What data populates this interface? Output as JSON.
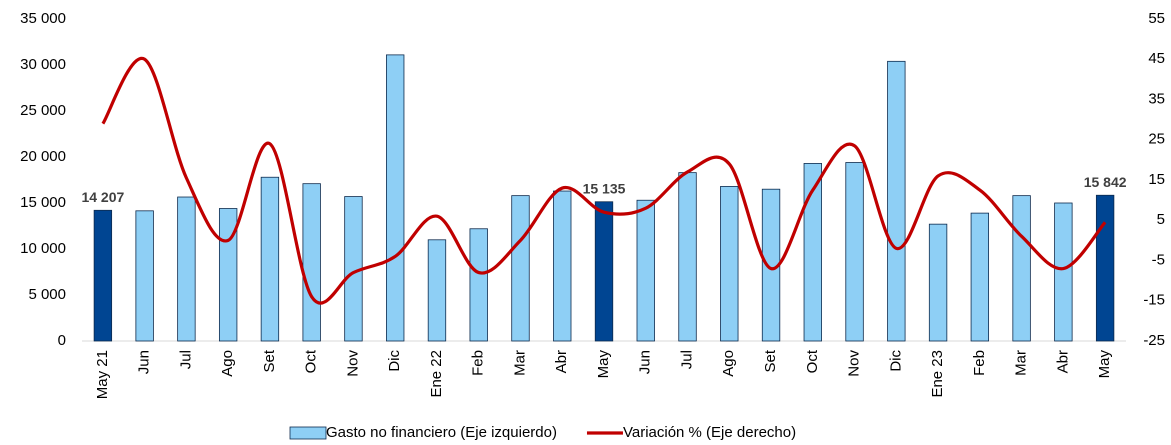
{
  "chart_data": {
    "type": "bar_line",
    "categories": [
      "May 21",
      "Jun",
      "Jul",
      "Ago",
      "Set",
      "Oct",
      "Nov",
      "Dic",
      "Ene 22",
      "Feb",
      "Mar",
      "Abr",
      "May",
      "Jun",
      "Jul",
      "Ago",
      "Set",
      "Oct",
      "Nov",
      "Dic",
      "Ene 23",
      "Feb",
      "Mar",
      "Abr",
      "May"
    ],
    "series": [
      {
        "name": "Gasto no financiero (Eje izquierdo)",
        "type": "bar",
        "color": "#8ecff5",
        "edge_color": "#0d2a4d",
        "colors": [
          "#004592",
          "#8ecff5",
          "#8ecff5",
          "#8ecff5",
          "#8ecff5",
          "#8ecff5",
          "#8ecff5",
          "#8ecff5",
          "#8ecff5",
          "#8ecff5",
          "#8ecff5",
          "#8ecff5",
          "#004592",
          "#8ecff5",
          "#8ecff5",
          "#8ecff5",
          "#8ecff5",
          "#8ecff5",
          "#8ecff5",
          "#8ecff5",
          "#8ecff5",
          "#8ecff5",
          "#8ecff5",
          "#8ecff5",
          "#004592"
        ],
        "values": [
          14207,
          14150,
          15650,
          14400,
          17800,
          17100,
          15700,
          31100,
          11000,
          12200,
          15800,
          16300,
          15135,
          15300,
          18300,
          16800,
          16500,
          19300,
          19400,
          30400,
          12700,
          13900,
          15800,
          15000,
          15842
        ],
        "value_labels": [
          "14 207",
          null,
          null,
          null,
          null,
          null,
          null,
          null,
          null,
          null,
          null,
          null,
          "15 135",
          null,
          null,
          null,
          null,
          null,
          null,
          null,
          null,
          null,
          null,
          null,
          "15 842"
        ]
      },
      {
        "name": "Variación % (Eje derecho)",
        "type": "line",
        "axis": "y2",
        "color": "#c00000",
        "values": [
          29,
          45,
          15.5,
          0,
          24,
          -14,
          -8,
          -4,
          6,
          -8,
          0,
          13,
          7,
          8,
          17,
          19,
          -7,
          12.5,
          23.5,
          -2,
          16,
          12.5,
          1,
          -7,
          4.5
        ]
      }
    ],
    "ylim": [
      0,
      35000
    ],
    "yticks": [
      0,
      {
        "value": 5000,
        "label": "5 000"
      },
      {
        "value": 10000,
        "label": "10 000"
      },
      {
        "value": 15000,
        "label": "15 000"
      },
      {
        "value": 20000,
        "label": "20 000"
      },
      {
        "value": 25000,
        "label": "25 000"
      },
      {
        "value": 30000,
        "label": "30 000"
      },
      {
        "value": 35000,
        "label": "35 000"
      }
    ],
    "y2lim": [
      -25,
      55
    ],
    "y2ticks": [
      -25,
      -15,
      -5,
      5,
      15,
      25,
      35,
      45,
      55
    ],
    "grid": false,
    "legend": "bottom"
  }
}
